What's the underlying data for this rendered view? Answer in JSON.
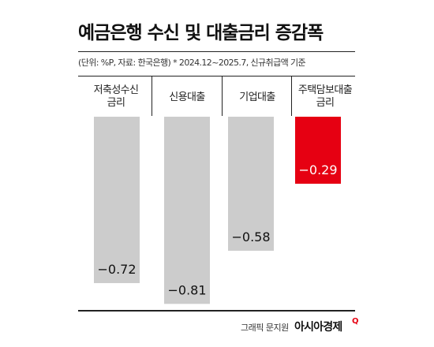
{
  "title": "예금은행 수신 및 대출금리 증감폭",
  "subtitle": "(단위: %P, 자료: 한국은행)  * 2024.12~2025.7, 신규취급액 기준",
  "credit": "그래픽 문지원",
  "brand": "아시아경제",
  "brand_mark": "Q",
  "colors": {
    "default_bar": "#cccccc",
    "highlight_bar": "#e60012",
    "label_dark": "#111111",
    "label_light": "#ffffff"
  },
  "chart_data": {
    "type": "bar",
    "title": "예금은행 수신 및 대출금리 증감폭",
    "categories": [
      "저축성수신\n금리",
      "신용대출",
      "기업대출",
      "주택담보대출\n금리"
    ],
    "values": [
      -0.72,
      -0.81,
      -0.58,
      -0.29
    ],
    "value_labels": [
      "−0.72",
      "−0.81",
      "−0.58",
      "−0.29"
    ],
    "highlight_index": 3,
    "ylim": [
      -0.9,
      0
    ],
    "grid": false,
    "legend": "none",
    "xlabel": "",
    "ylabel": ""
  }
}
